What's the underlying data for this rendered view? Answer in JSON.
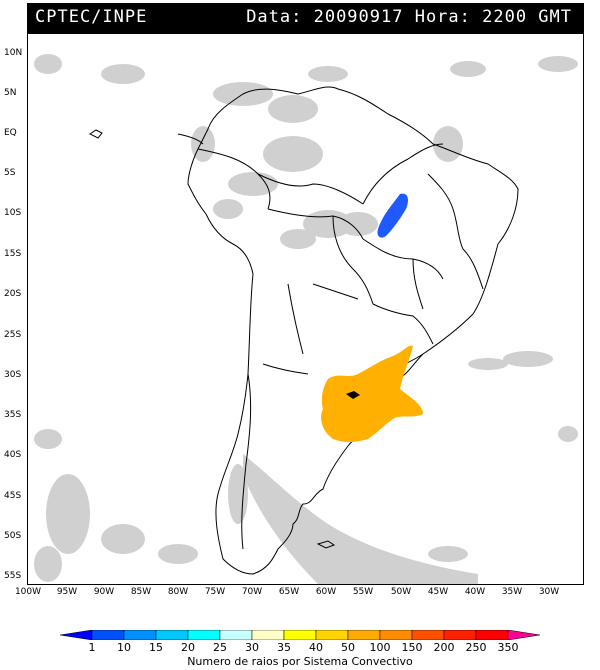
{
  "header": {
    "org": "CPTEC/INPE",
    "date_label": "Data: 20090917 Hora: 2200 GMT"
  },
  "lat_labels": [
    "10N",
    "5N",
    "EQ",
    "5S",
    "10S",
    "15S",
    "20S",
    "25S",
    "30S",
    "35S",
    "40S",
    "45S",
    "50S",
    "55S"
  ],
  "lon_labels": [
    "100W",
    "95W",
    "90W",
    "85W",
    "80W",
    "75W",
    "70W",
    "65W",
    "60W",
    "55W",
    "50W",
    "45W",
    "40W",
    "35W",
    "30W"
  ],
  "legend": {
    "title": "Numero de raios por Sistema Convectivo",
    "labels": [
      "1",
      "10",
      "15",
      "20",
      "25",
      "30",
      "35",
      "40",
      "50",
      "100",
      "150",
      "200",
      "250",
      "350"
    ],
    "colors": [
      "#0000ff",
      "#0050ff",
      "#0090ff",
      "#00c8ff",
      "#00ffff",
      "#c8ffff",
      "#ffffc8",
      "#ffff00",
      "#ffd200",
      "#ffaa00",
      "#ff8c00",
      "#ff5000",
      "#ff2000",
      "#ff0000",
      "#ff0090"
    ]
  },
  "systems": {
    "blue_color": "#1e5aff",
    "orange_color": "#ffb000",
    "cloud_color": "#c8c8c8"
  }
}
